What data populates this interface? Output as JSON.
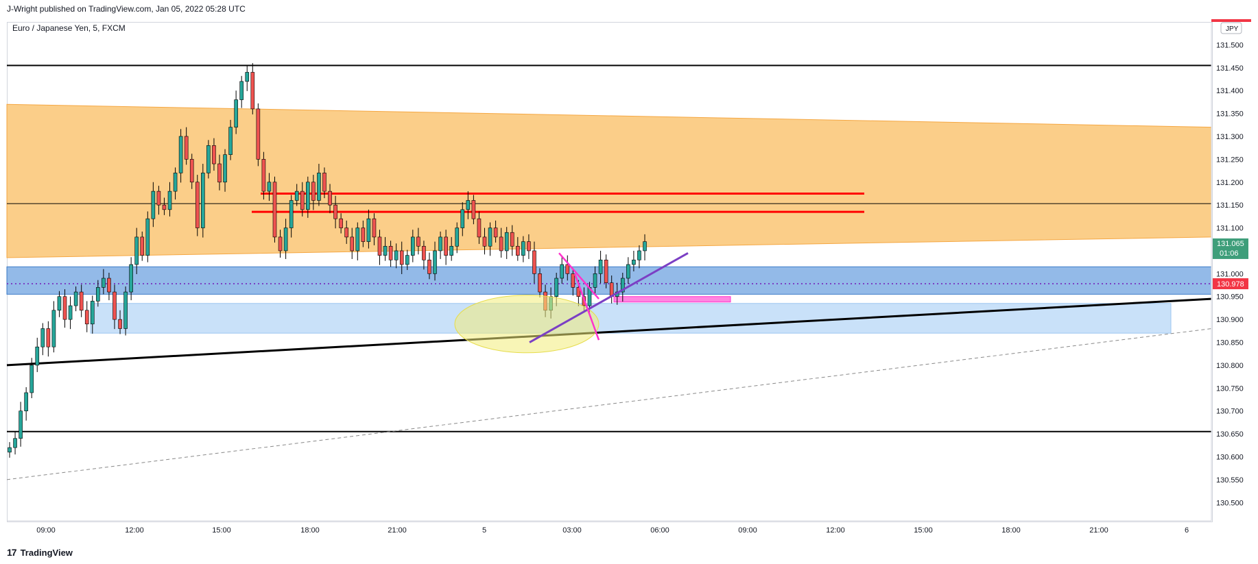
{
  "header": {
    "publisher_text": "J-Wright published on TradingView.com, Jan 05, 2022 05:28 UTC"
  },
  "symbol": {
    "title": "Euro / Japanese Yen, 5, FXCM"
  },
  "currency_badge": "JPY",
  "price_labels": {
    "last": "131.065",
    "countdown": "01:06",
    "red": "130.978"
  },
  "footer": {
    "brand": "TradingView",
    "logo_glyph": "17"
  },
  "colors": {
    "up": "#26a69a",
    "down": "#ef5350",
    "orange_zone": "#fbc97c",
    "blue_band": "#6fa3e0",
    "light_blue_zone": "#bfdcf8",
    "red_level": "#ff0000",
    "magenta": "#ff33cc",
    "purple": "#7b3fc4"
  },
  "chart_data": {
    "type": "candlestick",
    "symbol": "Euro / Japanese Yen",
    "timeframe": "5",
    "source": "FXCM",
    "x_tick_labels": [
      "09:00",
      "12:00",
      "15:00",
      "18:00",
      "21:00",
      "5",
      "03:00",
      "06:00",
      "09:00",
      "12:00",
      "15:00",
      "18:00",
      "21:00",
      "6"
    ],
    "y_tick_labels": [
      "131.500",
      "131.450",
      "131.400",
      "131.350",
      "131.300",
      "131.250",
      "131.200",
      "131.150",
      "131.100",
      "131.050",
      "131.000",
      "130.950",
      "130.900",
      "130.850",
      "130.800",
      "130.750",
      "130.700",
      "130.650",
      "130.600",
      "130.550",
      "130.500"
    ],
    "ylim": [
      130.46,
      131.55
    ],
    "grid": false,
    "horizontal_levels": [
      131.455,
      131.153,
      130.655
    ],
    "red_levels": [
      131.175,
      131.135
    ],
    "dotted_level": 130.978,
    "zones": {
      "orange_band": {
        "top_left": 131.37,
        "top_right": 131.32,
        "bottom_left": 131.035,
        "bottom_right": 131.08
      },
      "blue_band": [
        130.955,
        131.015
      ],
      "light_blue_box": [
        130.87,
        130.935
      ],
      "pink_box": [
        130.938,
        130.95
      ]
    },
    "price_path": [
      130.62,
      130.64,
      130.7,
      130.74,
      130.8,
      130.84,
      130.88,
      130.84,
      130.92,
      130.95,
      130.9,
      130.93,
      130.96,
      130.92,
      130.89,
      130.94,
      130.97,
      130.99,
      130.96,
      130.9,
      130.88,
      130.96,
      131.02,
      131.08,
      131.04,
      131.12,
      131.18,
      131.15,
      131.14,
      131.18,
      131.22,
      131.3,
      131.25,
      131.2,
      131.1,
      131.22,
      131.28,
      131.24,
      131.2,
      131.26,
      131.32,
      131.38,
      131.42,
      131.44,
      131.36,
      131.25,
      131.18,
      131.2,
      131.08,
      131.05,
      131.1,
      131.16,
      131.18,
      131.14,
      131.2,
      131.16,
      131.22,
      131.18,
      131.15,
      131.12,
      131.1,
      131.08,
      131.05,
      131.1,
      131.07,
      131.12,
      131.08,
      131.04,
      131.06,
      131.03,
      131.05,
      131.02,
      131.04,
      131.08,
      131.06,
      131.03,
      131.0,
      131.05,
      131.08,
      131.04,
      131.06,
      131.1,
      131.14,
      131.16,
      131.12,
      131.08,
      131.06,
      131.1,
      131.08,
      131.05,
      131.09,
      131.06,
      131.04,
      131.07,
      131.05,
      131.0,
      130.96,
      130.92,
      130.95,
      130.99,
      131.02,
      131.0,
      130.97,
      130.95,
      130.93,
      130.97,
      131.0,
      131.03,
      130.98,
      130.95,
      130.96,
      130.99,
      131.02,
      131.03,
      131.05,
      131.07
    ],
    "last_price": 131.065,
    "annotations": {
      "yellow_ellipse": {
        "x_approx": "01:30",
        "y_center": 130.89
      },
      "purple_trendline": {
        "from": 130.85,
        "to": 131.045
      },
      "magenta_lines": 2
    }
  }
}
